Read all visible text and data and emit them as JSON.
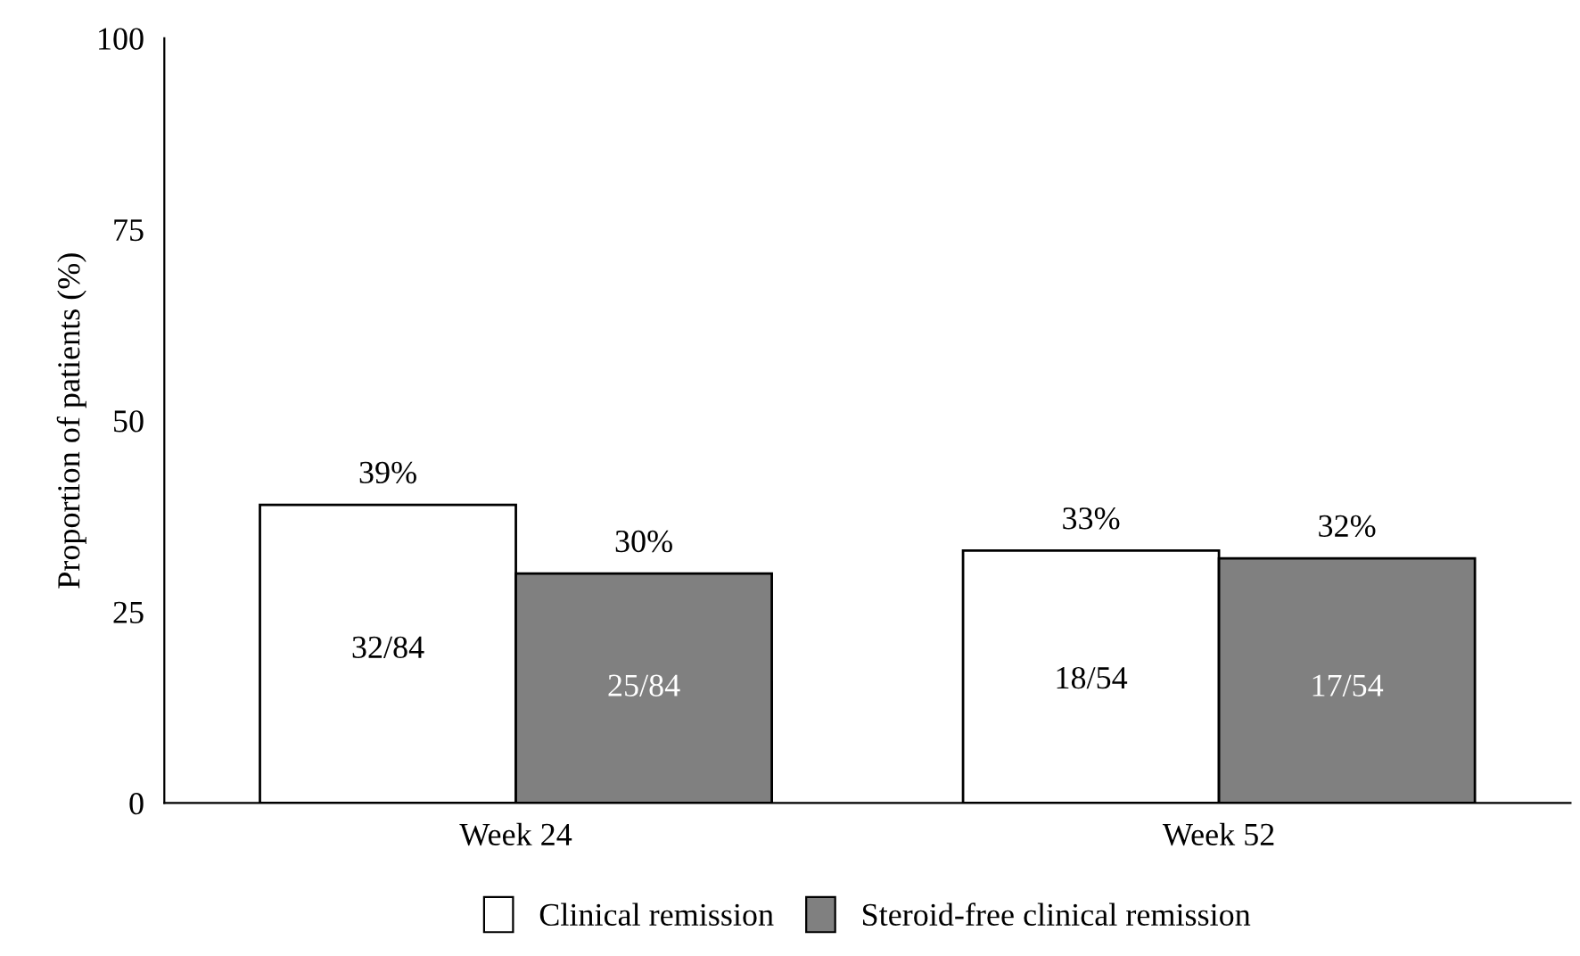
{
  "chart_data": {
    "type": "bar",
    "ylabel": "Proportion of patients (%)",
    "categories": [
      "Week 24",
      "Week 52"
    ],
    "series": [
      {
        "name": "Clinical remission",
        "color": "#ffffff",
        "values": [
          39,
          33
        ],
        "value_labels": [
          "39%",
          "33%"
        ]
      },
      {
        "name": "Steroid-free clinical remission",
        "color": "#808080",
        "values": [
          30,
          32
        ],
        "value_labels": [
          "30%",
          "32%"
        ]
      }
    ],
    "annotations": [
      {
        "text": "32/84",
        "x": "Week 24",
        "y": 20
      },
      {
        "text": "25/84",
        "x": "Week 24",
        "y": 15
      },
      {
        "text": "18/54",
        "x": "Week 52",
        "y": 16
      },
      {
        "text": "17/54",
        "x": "Week 52",
        "y": 15
      }
    ],
    "ylim": [
      0,
      100
    ],
    "yticks": [
      0,
      25,
      50,
      75,
      100
    ],
    "grid": false,
    "legend": "bottom"
  }
}
